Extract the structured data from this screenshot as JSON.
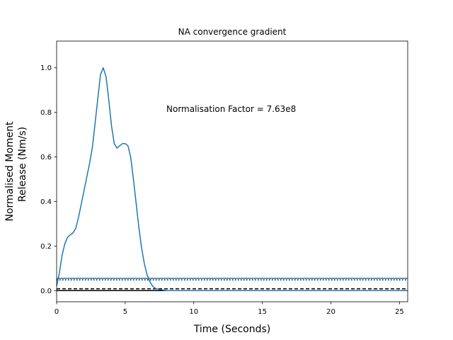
{
  "chart_data": {
    "type": "line",
    "title": "NA convergence gradient",
    "xlabel": "Time (Seconds)",
    "ylabel_lines": [
      "Normalised Moment",
      "Release (Nm/s)"
    ],
    "xlim": [
      0,
      25.6
    ],
    "ylim": [
      -0.05,
      1.12
    ],
    "xticks": [
      0,
      5,
      10,
      15,
      20,
      25
    ],
    "yticks": [
      0.0,
      0.2,
      0.4,
      0.6,
      0.8,
      1.0
    ],
    "xtick_labels": [
      "0",
      "5",
      "10",
      "15",
      "20",
      "25"
    ],
    "ytick_labels": [
      "0.0",
      "0.2",
      "0.4",
      "0.6",
      "0.8",
      "1.0"
    ],
    "annotation": "Normalisation Factor = 7.63e8",
    "series": [
      {
        "color": "#1f77b4",
        "style": "solid",
        "x": [
          0.0,
          0.2,
          0.4,
          0.6,
          0.8,
          1.0,
          1.2,
          1.4,
          1.6,
          1.8,
          2.0,
          2.2,
          2.4,
          2.6,
          2.8,
          3.0,
          3.2,
          3.4,
          3.6,
          3.8,
          4.0,
          4.2,
          4.4,
          4.6,
          4.8,
          5.0,
          5.2,
          5.4,
          5.6,
          5.8,
          6.0,
          6.2,
          6.4,
          6.6,
          6.8,
          7.0,
          7.2,
          7.5,
          7.8,
          8.0,
          8.5,
          10.0,
          15.0,
          20.0,
          25.6
        ],
        "y": [
          0.02,
          0.08,
          0.16,
          0.21,
          0.24,
          0.25,
          0.26,
          0.28,
          0.33,
          0.39,
          0.45,
          0.51,
          0.57,
          0.64,
          0.75,
          0.86,
          0.97,
          1.0,
          0.96,
          0.86,
          0.74,
          0.66,
          0.64,
          0.65,
          0.66,
          0.66,
          0.65,
          0.6,
          0.5,
          0.39,
          0.28,
          0.19,
          0.12,
          0.07,
          0.04,
          0.02,
          0.01,
          0.005,
          0.002,
          0.0,
          0.0,
          0.0,
          0.0,
          0.0,
          0.0
        ]
      }
    ],
    "hlines": [
      {
        "y": 0.055,
        "color": "#1f77b4",
        "style": "solid"
      },
      {
        "y": 0.048,
        "color": "#000000",
        "style": "dotted"
      },
      {
        "y": 0.0,
        "color": "#000000",
        "style": "solid"
      },
      {
        "y": 0.008,
        "color": "#000000",
        "style": "dashed"
      }
    ]
  }
}
